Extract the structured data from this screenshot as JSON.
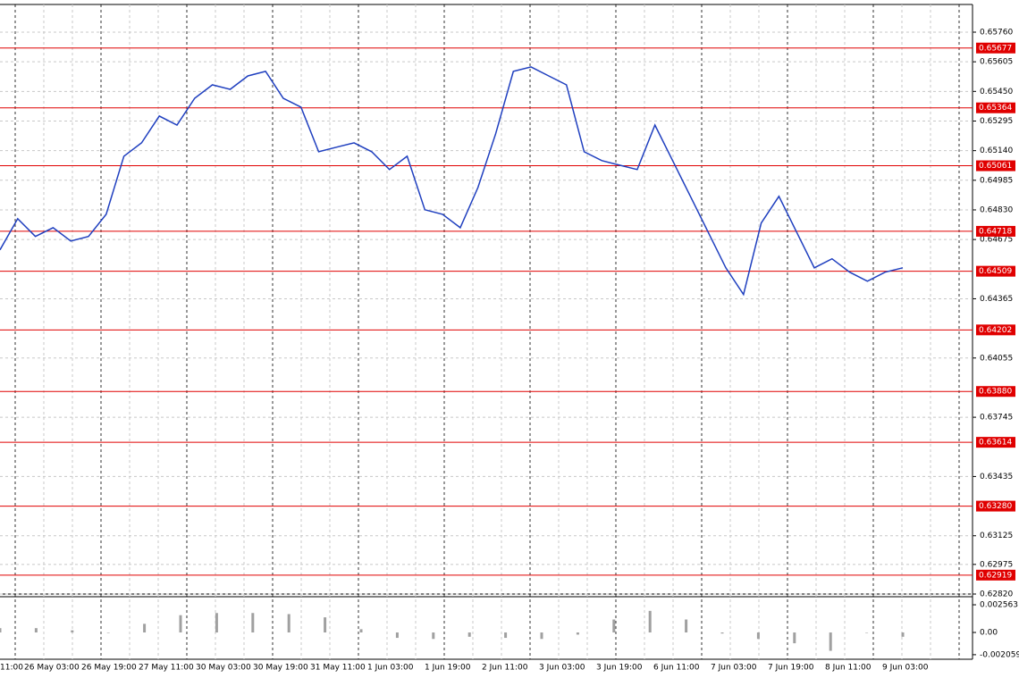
{
  "chart_data": [
    {
      "type": "line",
      "color": "#1f3fbf",
      "values": [
        0.64621,
        0.64784,
        0.64691,
        0.64737,
        0.64667,
        0.64691,
        0.64807,
        0.65111,
        0.65181,
        0.65321,
        0.65274,
        0.65414,
        0.65484,
        0.65461,
        0.65531,
        0.65555,
        0.65414,
        0.65368,
        0.65134,
        0.65158,
        0.65181,
        0.65134,
        0.65041,
        0.65111,
        0.64831,
        0.64807,
        0.64737,
        0.64947,
        0.65228,
        0.65555,
        0.65578,
        0.65531,
        0.65484,
        0.65134,
        0.65088,
        0.65064,
        0.65041,
        0.65274,
        0.65088,
        0.64901,
        0.64714,
        0.64527,
        0.64387,
        0.64761,
        0.64901,
        0.64714,
        0.64527,
        0.64574,
        0.64504,
        0.64457,
        0.64504,
        0.64527
      ],
      "ylim": [
        0.6282,
        0.6576
      ],
      "yticks": [
        {
          "value": 0.6576,
          "label": "0.65760"
        },
        {
          "value": 0.65605,
          "label": "0.65605"
        },
        {
          "value": 0.6545,
          "label": "0.65450"
        },
        {
          "value": 0.65295,
          "label": "0.65295"
        },
        {
          "value": 0.6514,
          "label": "0.65140"
        },
        {
          "value": 0.64985,
          "label": "0.64985"
        },
        {
          "value": 0.6483,
          "label": "0.64830"
        },
        {
          "value": 0.64675,
          "label": "0.64675"
        },
        {
          "value": 0.64365,
          "label": "0.64365"
        },
        {
          "value": 0.64055,
          "label": "0.64055"
        },
        {
          "value": 0.63745,
          "label": "0.63745"
        },
        {
          "value": 0.63435,
          "label": "0.63435"
        },
        {
          "value": 0.63125,
          "label": "0.63125"
        },
        {
          "value": 0.62975,
          "label": "0.62975"
        },
        {
          "value": 0.6282,
          "label": "0.62820"
        }
      ],
      "levels": [
        {
          "value": 0.65677,
          "label": "0.65677"
        },
        {
          "value": 0.65364,
          "label": "0.65364"
        },
        {
          "value": 0.65061,
          "label": "0.65061"
        },
        {
          "value": 0.64718,
          "label": "0.64718"
        },
        {
          "value": 0.64509,
          "label": "0.64509"
        },
        {
          "value": 0.64202,
          "label": "0.64202"
        },
        {
          "value": 0.6388,
          "label": "0.63880"
        },
        {
          "value": 0.63614,
          "label": "0.63614"
        },
        {
          "value": 0.6328,
          "label": "0.63280"
        },
        {
          "value": 0.62919,
          "label": "0.62919"
        }
      ],
      "level_color": "#e00000",
      "xticks": [
        "11:00",
        "26 May 03:00",
        "26 May 19:00",
        "27 May 11:00",
        "30 May 03:00",
        "30 May 19:00",
        "31 May 11:00",
        "1 Jun 03:00",
        "1 Jun 19:00",
        "2 Jun 11:00",
        "3 Jun 03:00",
        "3 Jun 19:00",
        "6 Jun 11:00",
        "7 Jun 03:00",
        "7 Jun 19:00",
        "8 Jun 11:00",
        "9 Jun 03:00"
      ],
      "grid": true
    },
    {
      "type": "bar",
      "color": "#a0a0a0",
      "values": [
        0.0004,
        0.0004,
        0.0002,
        0.0,
        0.0008,
        0.0016,
        0.0018,
        0.0018,
        0.0017,
        0.0014,
        0.0003,
        -0.0005,
        -0.0006,
        -0.0004,
        -0.0005,
        -0.0006,
        -0.0002,
        0.0012,
        0.002,
        0.0012,
        -0.0001,
        -0.0006,
        -0.001,
        -0.0017,
        0.0,
        -0.0004
      ],
      "ylim": [
        -0.00248,
        0.00331
      ],
      "yticks": [
        {
          "value": 0.002563,
          "label": "0.002563"
        },
        {
          "value": 0,
          "label": "0.00"
        },
        {
          "value": -0.002059,
          "label": "-0.002059"
        }
      ]
    }
  ]
}
